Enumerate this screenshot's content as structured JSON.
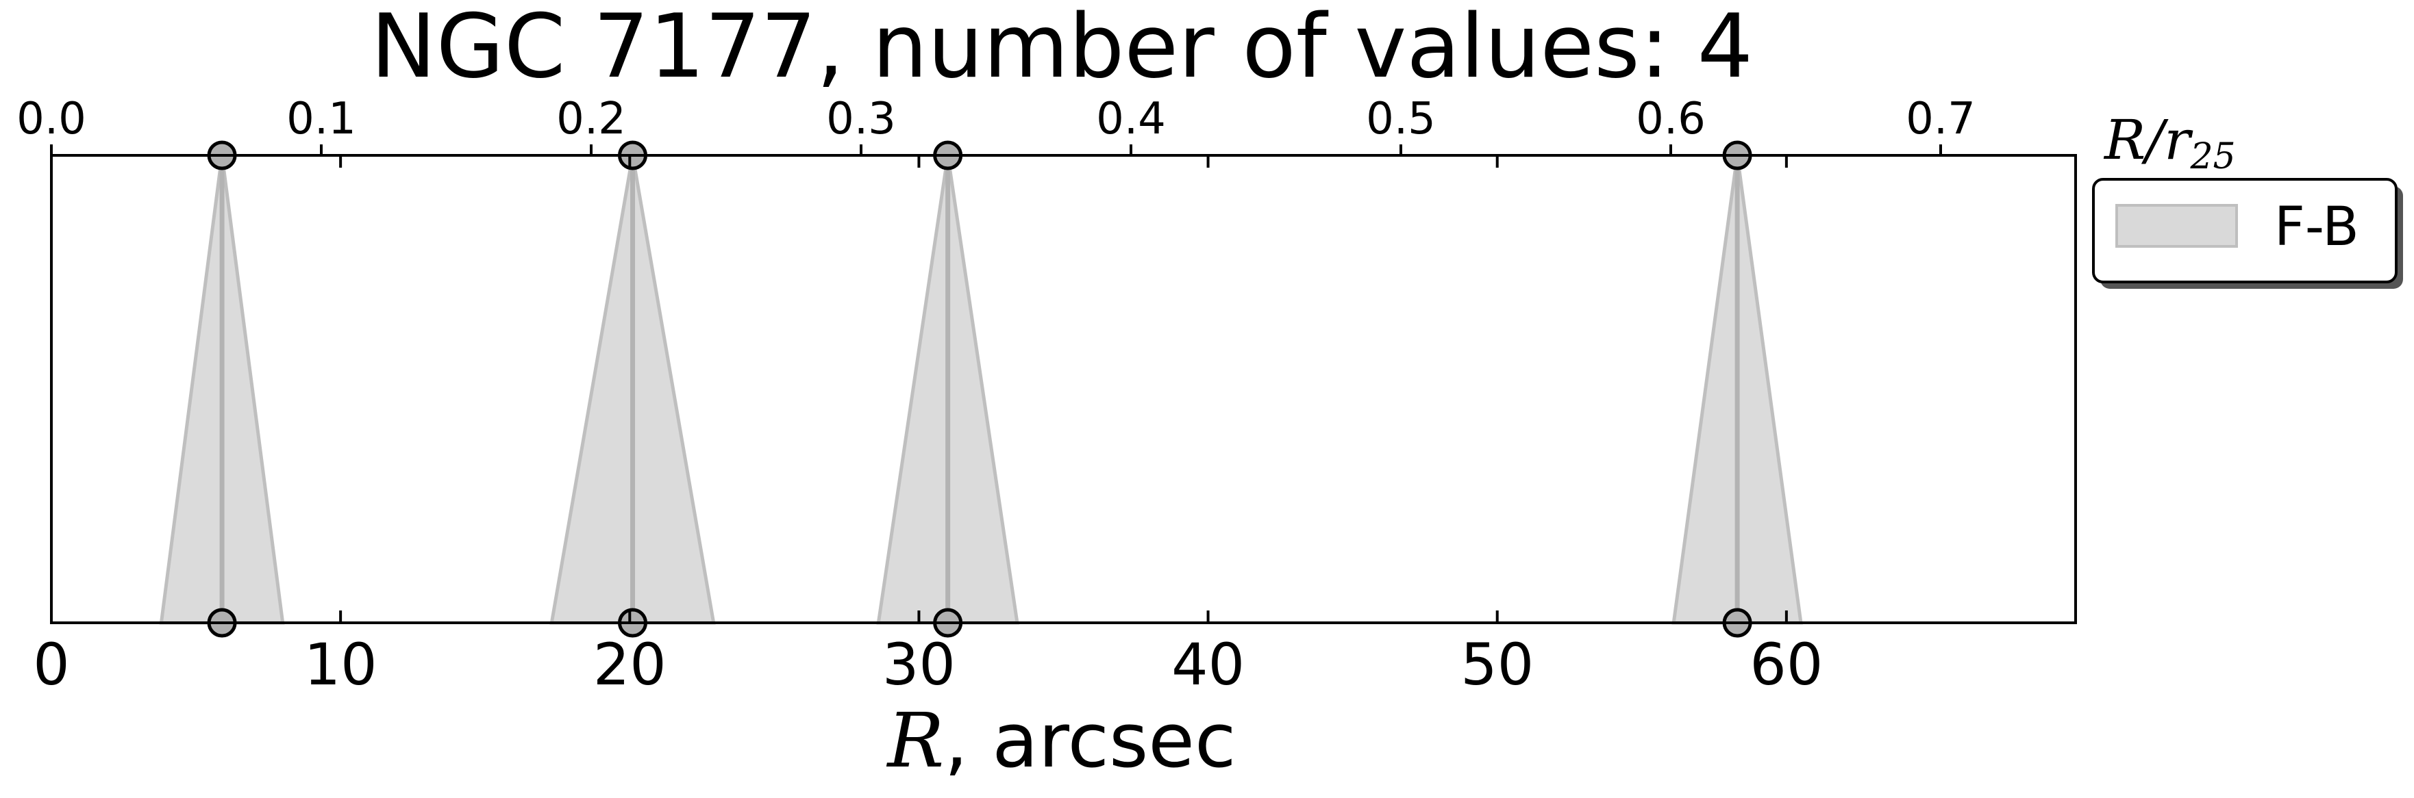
{
  "chart_data": {
    "type": "scatter",
    "title": "NGC 7177, number of values: 4",
    "xlabel_symbol": "R",
    "xlabel_text": ", arcsec",
    "top_axis_label": {
      "main": "R/r",
      "sub": "25"
    },
    "xlim": [
      0,
      70
    ],
    "top_xlim": [
      0,
      0.75
    ],
    "bottom_ticks": [
      0,
      10,
      20,
      30,
      40,
      50,
      60
    ],
    "bottom_tick_labels": [
      "0",
      "10",
      "20",
      "30",
      "40",
      "50",
      "60"
    ],
    "top_ticks": [
      0.0,
      0.1,
      0.2,
      0.3,
      0.4,
      0.5,
      0.6,
      0.7
    ],
    "top_tick_labels": [
      "0.0",
      "0.1",
      "0.2",
      "0.3",
      "0.4",
      "0.5",
      "0.6",
      "0.7"
    ],
    "series": [
      {
        "name": "F-B",
        "color": "#d9d9d9",
        "edge_color": "#bfbfbf",
        "points": [
          {
            "r": 5.9,
            "r_lo": 3.8,
            "r_hi": 8.0
          },
          {
            "r": 20.1,
            "r_lo": 17.3,
            "r_hi": 22.9
          },
          {
            "r": 31.0,
            "r_lo": 28.6,
            "r_hi": 33.4
          },
          {
            "r": 58.3,
            "r_lo": 56.1,
            "r_hi": 60.5
          }
        ]
      }
    ],
    "legend": {
      "position": "outside-right-top",
      "entries": [
        "F-B"
      ]
    },
    "grid": false
  }
}
